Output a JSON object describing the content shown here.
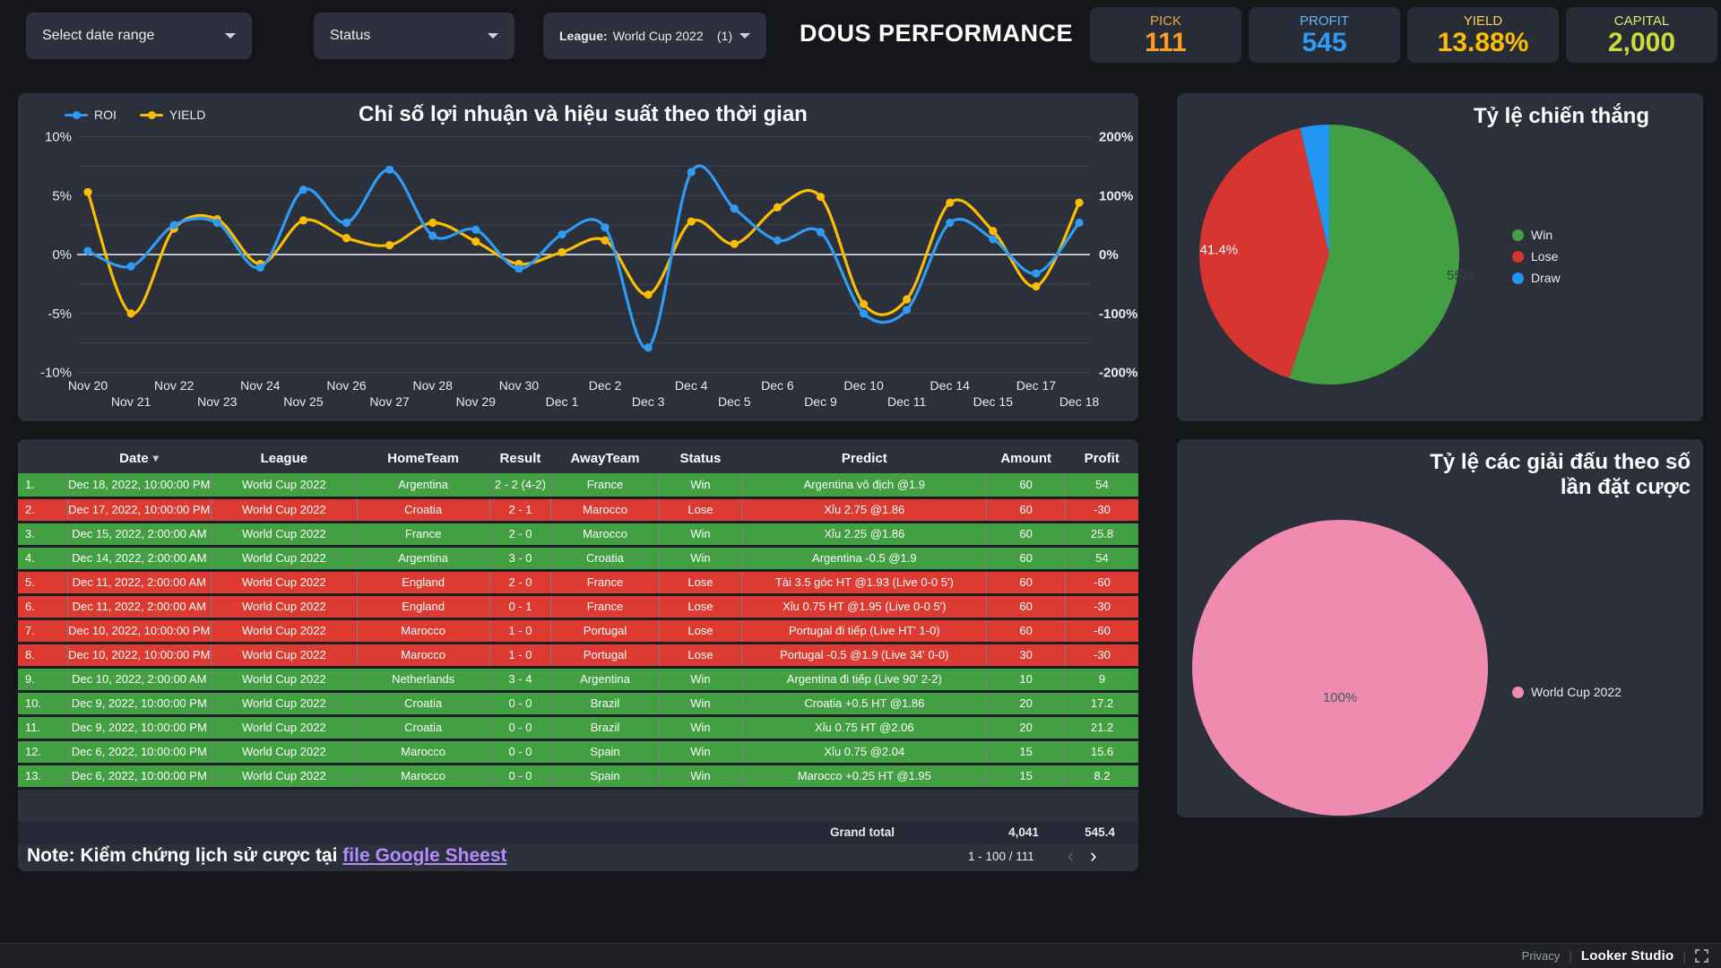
{
  "topbar": {
    "date_range": {
      "label": "Select date range"
    },
    "status": {
      "label": "Status"
    },
    "league": {
      "prefix": "League:",
      "value": "World Cup 2022",
      "count": "(1)"
    },
    "title": "DOUS PERFORMANCE"
  },
  "kpis": [
    {
      "label": "PICK",
      "value": "111",
      "label_color": "#f0a243",
      "value_color": "#ff9d1c"
    },
    {
      "label": "PROFIT",
      "value": "545",
      "label_color": "#64b5f6",
      "value_color": "#2e9bf5"
    },
    {
      "label": "YIELD",
      "value": "13.88%",
      "label_color": "#fdd05a",
      "value_color": "#fcbe03"
    },
    {
      "label": "CAPITAL",
      "value": "2,000",
      "label_color": "#dce775",
      "value_color": "#cddc39"
    }
  ],
  "chart_data": [
    {
      "type": "line",
      "title": "Chỉ số lợi nhuận và hiệu suất theo thời gian",
      "x": [
        "Nov 20",
        "Nov 21",
        "Nov 22",
        "Nov 23",
        "Nov 24",
        "Nov 25",
        "Nov 26",
        "Nov 27",
        "Nov 28",
        "Nov 29",
        "Nov 30",
        "Dec 1",
        "Dec 2",
        "Dec 3",
        "Dec 4",
        "Dec 5",
        "Dec 6",
        "Dec 9",
        "Dec 10",
        "Dec 11",
        "Dec 14",
        "Dec 15",
        "Dec 17",
        "Dec 18"
      ],
      "series": [
        {
          "name": "ROI",
          "axis": "left",
          "unit": "%",
          "color": "#2f9bf4",
          "values": [
            0.3,
            -1.0,
            2.5,
            2.7,
            -1.1,
            5.5,
            2.7,
            7.2,
            1.6,
            2.1,
            -1.2,
            1.7,
            2.3,
            -7.9,
            7.0,
            3.9,
            1.2,
            1.9,
            -5.0,
            -4.7,
            2.7,
            1.3,
            -1.6,
            2.7
          ]
        },
        {
          "name": "YIELD",
          "axis": "right",
          "unit": "%",
          "color": "#fbbc04",
          "values": [
            106,
            -100,
            44,
            60,
            -16,
            58,
            28,
            16,
            54,
            22,
            -16,
            4,
            24,
            -68,
            56,
            18,
            80,
            98,
            -84,
            -76,
            88,
            40,
            -54,
            88
          ]
        }
      ],
      "left_axis": {
        "min": -10,
        "max": 10,
        "ticks": [
          "10%",
          "5%",
          "0%",
          "-5%",
          "-10%"
        ]
      },
      "right_axis": {
        "min": -200,
        "max": 200,
        "ticks": [
          "200%",
          "100%",
          "0%",
          "-100%",
          "-200%"
        ]
      },
      "grid": true,
      "legend_position": "top-left"
    },
    {
      "type": "pie",
      "title": "Tỷ lệ chiến thắng",
      "slices": [
        {
          "label": "Win",
          "value": 55,
          "color": "#42a042",
          "text": "55%"
        },
        {
          "label": "Lose",
          "value": 41.4,
          "color": "#d6362f",
          "text": "41.4%"
        },
        {
          "label": "Draw",
          "value": 3.6,
          "color": "#2196f3",
          "text": ""
        }
      ],
      "legend_position": "right"
    },
    {
      "type": "pie",
      "title": "Tỷ lệ các giải đấu theo số lần đặt cược",
      "title_lines": [
        "Tỷ lệ các giải đấu theo số",
        "lần đặt cược"
      ],
      "slices": [
        {
          "label": "World Cup 2022",
          "value": 100,
          "color": "#f08bb0",
          "text": "100%"
        }
      ],
      "legend_position": "right"
    }
  ],
  "table": {
    "columns": [
      "",
      "Date",
      "League",
      "HomeTeam",
      "Result",
      "AwayTeam",
      "Status",
      "Predict",
      "Amount",
      "Profit"
    ],
    "rows": [
      {
        "num": "1.",
        "date": "Dec 18, 2022, 10:00:00 PM",
        "league": "World Cup 2022",
        "home": "Argentina",
        "result": "2 - 2 (4-2)",
        "away": "France",
        "status": "Win",
        "predict": "Argentina vô địch @1.9",
        "amount": "60",
        "profit": "54"
      },
      {
        "num": "2.",
        "date": "Dec 17, 2022, 10:00:00 PM",
        "league": "World Cup 2022",
        "home": "Croatia",
        "result": "2 - 1",
        "away": "Marocco",
        "status": "Lose",
        "predict": "Xỉu 2.75 @1.86",
        "amount": "60",
        "profit": "-30"
      },
      {
        "num": "3.",
        "date": "Dec 15, 2022, 2:00:00 AM",
        "league": "World Cup 2022",
        "home": "France",
        "result": "2 - 0",
        "away": "Marocco",
        "status": "Win",
        "predict": "Xỉu 2.25 @1.86",
        "amount": "60",
        "profit": "25.8"
      },
      {
        "num": "4.",
        "date": "Dec 14, 2022, 2:00:00 AM",
        "league": "World Cup 2022",
        "home": "Argentina",
        "result": "3 - 0",
        "away": "Croatia",
        "status": "Win",
        "predict": "Argentina -0.5 @1.9",
        "amount": "60",
        "profit": "54"
      },
      {
        "num": "5.",
        "date": "Dec 11, 2022, 2:00:00 AM",
        "league": "World Cup 2022",
        "home": "England",
        "result": "2 - 0",
        "away": "France",
        "status": "Lose",
        "predict": "Tài 3.5 góc HT @1.93 (Live 0-0 5')",
        "amount": "60",
        "profit": "-60"
      },
      {
        "num": "6.",
        "date": "Dec 11, 2022, 2:00:00 AM",
        "league": "World Cup 2022",
        "home": "England",
        "result": "0 - 1",
        "away": "France",
        "status": "Lose",
        "predict": "Xỉu 0.75 HT @1.95 (Live 0-0 5')",
        "amount": "60",
        "profit": "-30"
      },
      {
        "num": "7.",
        "date": "Dec 10, 2022, 10:00:00 PM",
        "league": "World Cup 2022",
        "home": "Marocco",
        "result": "1 - 0",
        "away": "Portugal",
        "status": "Lose",
        "predict": "Portugal đi tiếp (Live HT' 1-0)",
        "amount": "60",
        "profit": "-60"
      },
      {
        "num": "8.",
        "date": "Dec 10, 2022, 10:00:00 PM",
        "league": "World Cup 2022",
        "home": "Marocco",
        "result": "1 - 0",
        "away": "Portugal",
        "status": "Lose",
        "predict": "Portugal -0.5 @1.9 (Live 34' 0-0)",
        "amount": "30",
        "profit": "-30"
      },
      {
        "num": "9.",
        "date": "Dec 10, 2022, 2:00:00 AM",
        "league": "World Cup 2022",
        "home": "Netherlands",
        "result": "3 - 4",
        "away": "Argentina",
        "status": "Win",
        "predict": "Argentina đi tiếp (Live 90' 2-2)",
        "amount": "10",
        "profit": "9"
      },
      {
        "num": "10.",
        "date": "Dec 9, 2022, 10:00:00 PM",
        "league": "World Cup 2022",
        "home": "Croatia",
        "result": "0 - 0",
        "away": "Brazil",
        "status": "Win",
        "predict": "Croatia +0.5 HT @1.86",
        "amount": "20",
        "profit": "17.2"
      },
      {
        "num": "11.",
        "date": "Dec 9, 2022, 10:00:00 PM",
        "league": "World Cup 2022",
        "home": "Croatia",
        "result": "0 - 0",
        "away": "Brazil",
        "status": "Win",
        "predict": "Xỉu 0.75 HT @2.06",
        "amount": "20",
        "profit": "21.2"
      },
      {
        "num": "12.",
        "date": "Dec 6, 2022, 10:00:00 PM",
        "league": "World Cup 2022",
        "home": "Marocco",
        "result": "0 - 0",
        "away": "Spain",
        "status": "Win",
        "predict": "Xỉu 0.75 @2.04",
        "amount": "15",
        "profit": "15.6"
      },
      {
        "num": "13.",
        "date": "Dec 6, 2022, 10:00:00 PM",
        "league": "World Cup 2022",
        "home": "Marocco",
        "result": "0 - 0",
        "away": "Spain",
        "status": "Win",
        "predict": "Marocco +0.25 HT @1.95",
        "amount": "15",
        "profit": "8.2"
      }
    ],
    "grand_total": {
      "label": "Grand total",
      "amount": "4,041",
      "profit": "545.4"
    },
    "pagination": {
      "range": "1 - 100 / 111",
      "prev": "‹",
      "next": "›"
    }
  },
  "note": {
    "prefix": "Note: Kiểm chứng lịch sử cược tại ",
    "link": "file Google Sheest"
  },
  "footer": {
    "privacy": "Privacy",
    "brand": "Looker Studio"
  },
  "colors": {
    "page_bg": "#15161a",
    "card_bg": "#2b303b",
    "win_green": "#42a042",
    "lose_red": "#dd3a31",
    "roi_blue": "#2f9bf4",
    "yield_yellow": "#fbbc04",
    "draw_blue": "#2196f3",
    "pie_pink": "#f08bb0",
    "link_purple": "#b48cff"
  }
}
